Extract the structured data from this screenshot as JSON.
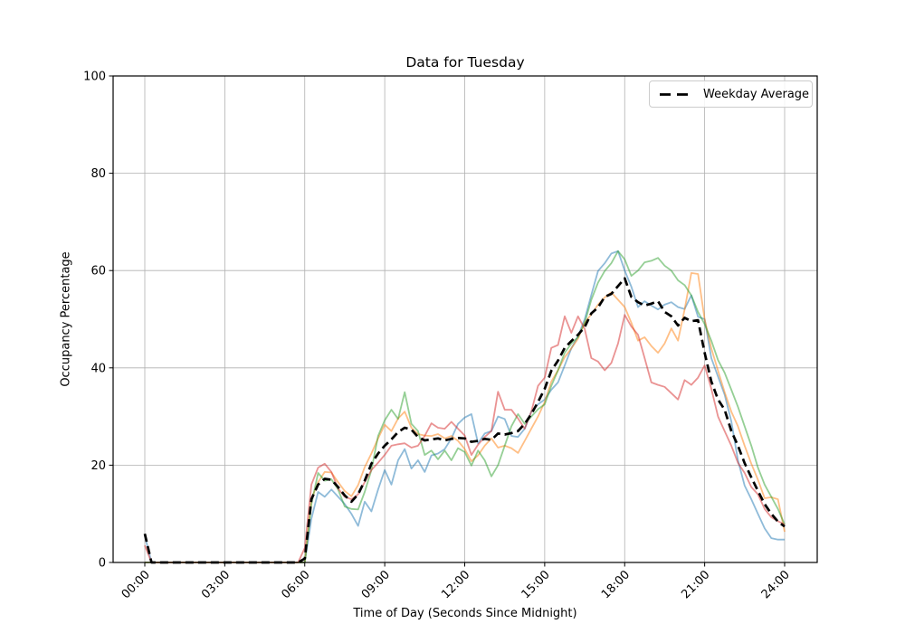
{
  "chart_data": {
    "type": "line",
    "title": "Data for Tuesday",
    "xlabel": "Time of Day (Seconds Since Midnight)",
    "ylabel": "Occupancy Percentage",
    "xlim": [
      0,
      24
    ],
    "ylim": [
      0,
      100
    ],
    "grid": true,
    "x_ticks": {
      "hours": [
        0,
        3,
        6,
        9,
        12,
        15,
        18,
        21,
        24
      ],
      "labels": [
        "00:00",
        "03:00",
        "06:00",
        "09:00",
        "12:00",
        "15:00",
        "18:00",
        "21:00",
        "24:00"
      ]
    },
    "y_ticks": [
      0,
      20,
      40,
      60,
      80,
      100
    ],
    "legend": {
      "label": "Weekday Average",
      "position": "upper right"
    },
    "x_step_hours": 0.25,
    "series": [
      {
        "name": "weekday-1",
        "color": "#1f77b4",
        "opacity": 0.5,
        "line_width": 1.8,
        "dashed": false,
        "values": [
          5.5,
          0,
          0,
          0,
          0,
          0,
          0,
          0,
          0,
          0,
          0,
          0,
          0,
          0,
          0,
          0,
          0,
          0,
          0,
          0,
          0,
          0,
          0,
          0,
          0,
          9,
          14.5,
          13.5,
          15,
          13.5,
          12,
          10,
          7.5,
          12.5,
          10.5,
          15,
          19,
          16,
          21,
          23.3,
          19.3,
          21,
          18.6,
          22,
          22.4,
          23.3,
          25.5,
          28.5,
          29.8,
          30.5,
          24.5,
          26.5,
          27,
          30,
          29.5,
          26,
          25.8,
          27.5,
          31,
          32.5,
          33.5,
          35.5,
          37,
          40.5,
          44,
          46.5,
          50,
          55,
          59.9,
          61.5,
          63.5,
          64,
          60,
          56.7,
          52.5,
          53.7,
          52.8,
          52,
          53,
          53.5,
          52.5,
          52.1,
          54.9,
          50.5,
          50,
          42,
          38.2,
          34.5,
          29,
          21,
          15.8,
          13,
          10,
          7,
          5,
          4.7,
          4.7
        ]
      },
      {
        "name": "weekday-2",
        "color": "#ff7f0e",
        "opacity": 0.5,
        "line_width": 1.8,
        "dashed": false,
        "values": [
          0,
          0,
          0,
          0,
          0,
          0,
          0,
          0,
          0,
          0,
          0,
          0,
          0,
          0,
          0,
          0,
          0,
          0,
          0,
          0,
          0,
          0,
          0,
          0,
          0,
          13,
          16.5,
          18.6,
          18.5,
          16.5,
          14.7,
          13.6,
          15.9,
          19.6,
          22.4,
          25.5,
          28.3,
          27,
          29.6,
          31,
          27.7,
          26.4,
          26.1,
          26,
          26.4,
          25.5,
          26,
          25,
          23.3,
          20.8,
          22,
          24,
          25.5,
          23.6,
          24,
          23.5,
          22.5,
          25,
          27.5,
          30,
          33,
          37.2,
          39.5,
          42.2,
          44,
          46,
          49.3,
          51,
          53,
          54.5,
          55.5,
          54,
          52.5,
          49.3,
          45.6,
          46.3,
          44.5,
          43.1,
          45,
          48.1,
          45.6,
          52,
          59.5,
          59.3,
          50,
          44,
          39.4,
          35,
          31,
          28,
          24,
          20.3,
          17,
          13.2,
          13.4,
          13,
          6.3
        ]
      },
      {
        "name": "weekday-3",
        "color": "#2ca02c",
        "opacity": 0.5,
        "line_width": 1.8,
        "dashed": false,
        "values": [
          0,
          0,
          0,
          0,
          0,
          0,
          0,
          0,
          0,
          0,
          0,
          0,
          0,
          0,
          0,
          0,
          0,
          0,
          0,
          0,
          0,
          0,
          0,
          0,
          0,
          12,
          18.4,
          16.8,
          17.1,
          15,
          11.5,
          11,
          10.9,
          14.5,
          19,
          26,
          29.2,
          31.4,
          29.5,
          35,
          28.5,
          27,
          22.1,
          23,
          21.2,
          23,
          21,
          23.5,
          22.7,
          19.9,
          23,
          21,
          17.7,
          20,
          24,
          28,
          30.5,
          28.5,
          30,
          31.5,
          32.5,
          36.3,
          39.5,
          43.1,
          45,
          46.3,
          49.3,
          54,
          57.5,
          59.9,
          61.5,
          64,
          62.3,
          58.9,
          60,
          61.7,
          62,
          62.6,
          61,
          60,
          58,
          57,
          54.9,
          51.5,
          49,
          45.6,
          41.6,
          39,
          35.5,
          32,
          28,
          24,
          19.5,
          16,
          13.5,
          11,
          7.8
        ]
      },
      {
        "name": "weekday-4",
        "color": "#d62728",
        "opacity": 0.5,
        "line_width": 1.8,
        "dashed": false,
        "values": [
          3.5,
          0,
          0,
          0,
          0,
          0,
          0,
          0,
          0,
          0,
          0,
          0,
          0,
          0,
          0,
          0,
          0,
          0,
          0,
          0,
          0,
          0,
          0,
          0,
          3,
          16,
          19.5,
          20.3,
          18.6,
          15.2,
          13.5,
          13,
          14,
          16.5,
          19,
          20.5,
          22.1,
          24,
          24.3,
          24.5,
          23.6,
          24,
          26,
          28.6,
          27.7,
          27.5,
          28.9,
          27.5,
          26.1,
          22.1,
          24.2,
          25.8,
          27,
          35.1,
          31.4,
          31.4,
          29.6,
          27.5,
          31,
          36.3,
          38,
          44.1,
          44.7,
          50.6,
          47.2,
          50.6,
          48,
          42,
          41.3,
          39.5,
          41,
          45,
          50.9,
          48.5,
          46.8,
          42,
          37,
          36.5,
          36.1,
          34.8,
          33.5,
          37.5,
          36.5,
          38,
          40.5,
          35.7,
          30,
          27,
          24,
          20.5,
          18.4,
          15.5,
          14,
          11,
          9.3,
          8.5,
          7.8
        ]
      },
      {
        "name": "weekday-average",
        "color": "#000000",
        "opacity": 1,
        "line_width": 2.7,
        "dashed": true,
        "values": [
          5.9,
          0,
          0,
          0,
          0,
          0,
          0,
          0,
          0,
          0,
          0,
          0,
          0,
          0,
          0,
          0,
          0,
          0,
          0,
          0,
          0,
          0,
          0,
          0,
          0.8,
          13,
          16,
          17.2,
          17,
          15.5,
          13.8,
          12.5,
          14,
          16.8,
          20.3,
          22.4,
          24,
          25.3,
          26.8,
          27.7,
          27.3,
          25.8,
          25.1,
          25.3,
          25.5,
          25.1,
          25.4,
          25.6,
          25.5,
          24.8,
          25,
          25.4,
          25.2,
          26.5,
          26.3,
          26.6,
          27,
          28.5,
          30.5,
          33,
          35.7,
          39.4,
          41.5,
          44.1,
          45.5,
          46.8,
          48.4,
          51.2,
          52.4,
          54.6,
          55.2,
          56.8,
          58.4,
          54.6,
          53.5,
          52.8,
          53.2,
          53.7,
          51.5,
          50.6,
          48.7,
          50.3,
          49.6,
          49.8,
          43.1,
          37.2,
          33.5,
          31.4,
          27,
          24,
          20.4,
          17.5,
          14.7,
          12,
          10,
          8.4,
          7.4
        ]
      }
    ]
  }
}
